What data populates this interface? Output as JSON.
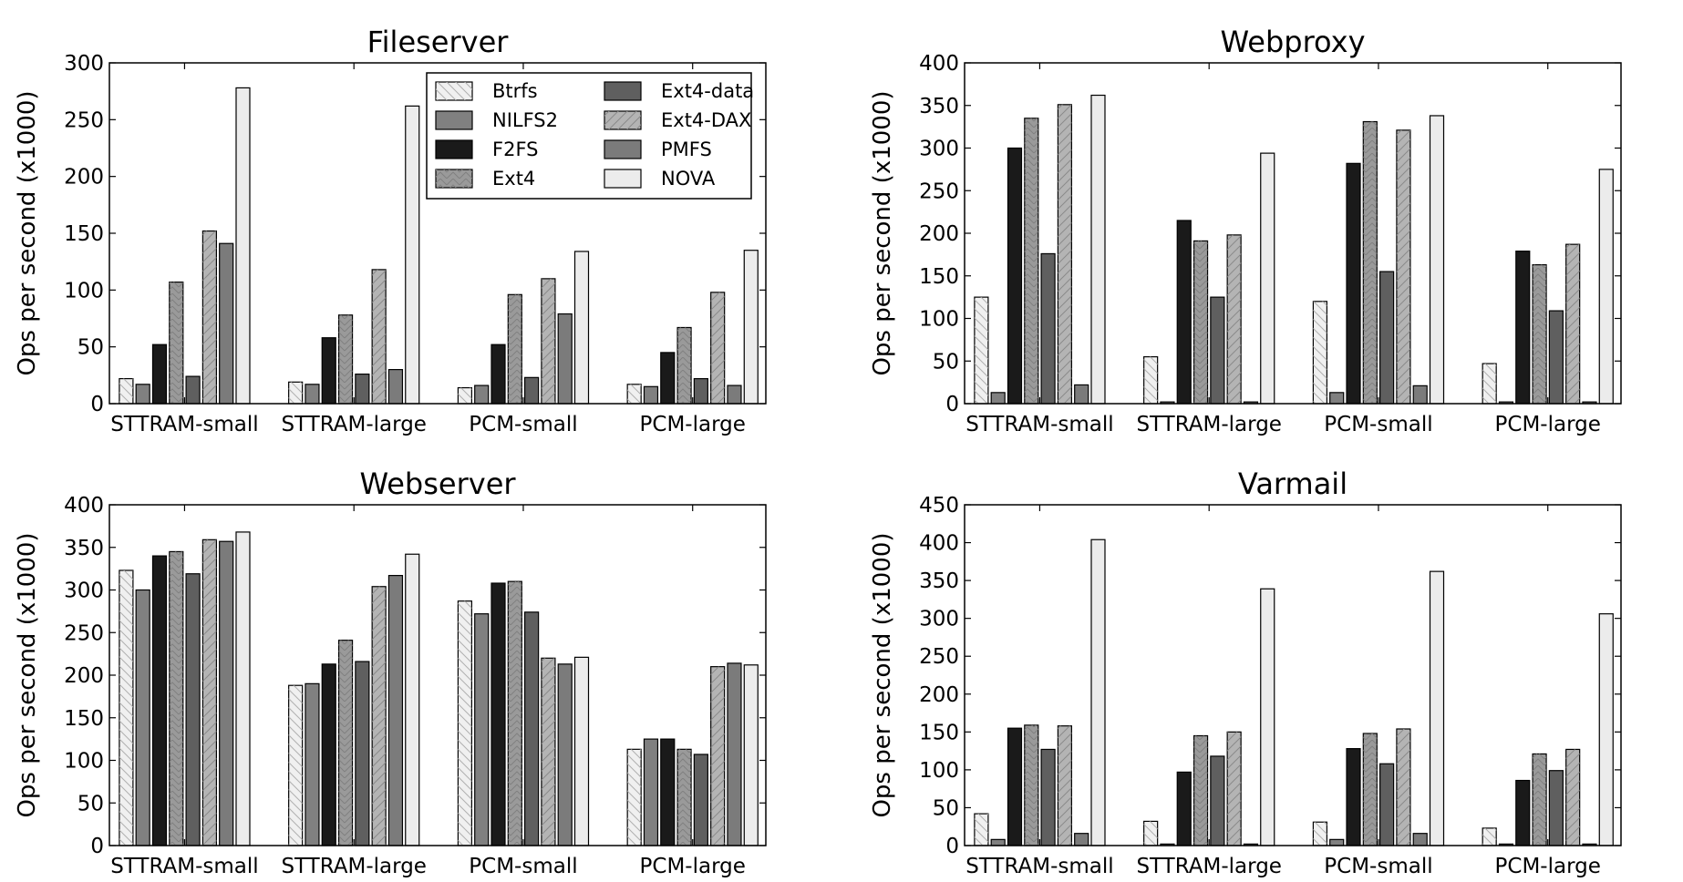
{
  "legend": {
    "items": [
      "Btrfs",
      "NILFS2",
      "F2FS",
      "Ext4",
      "Ext4-data",
      "Ext4-DAX",
      "PMFS",
      "NOVA"
    ],
    "placement": "upper-right of first panel",
    "columns": 2
  },
  "series_styles": [
    {
      "name": "Btrfs",
      "color": "#f0f0f0",
      "hatch": "diagonal-back"
    },
    {
      "name": "NILFS2",
      "color": "#808080",
      "hatch": "none"
    },
    {
      "name": "F2FS",
      "color": "#1a1a1a",
      "hatch": "none"
    },
    {
      "name": "Ext4",
      "color": "#9a9a9a",
      "hatch": "chevron"
    },
    {
      "name": "Ext4-data",
      "color": "#5f5f5f",
      "hatch": "none"
    },
    {
      "name": "Ext4-DAX",
      "color": "#b4b4b4",
      "hatch": "diagonal"
    },
    {
      "name": "PMFS",
      "color": "#7b7b7b",
      "hatch": "none"
    },
    {
      "name": "NOVA",
      "color": "#ececec",
      "hatch": "none"
    }
  ],
  "chart_data": [
    {
      "type": "bar",
      "title": "Fileserver",
      "xlabel": "",
      "ylabel": "Ops per second (x1000)",
      "categories": [
        "STTRAM-small",
        "STTRAM-large",
        "PCM-small",
        "PCM-large"
      ],
      "ylim": [
        0,
        300
      ],
      "yticks": [
        0,
        50,
        100,
        150,
        200,
        250,
        300
      ],
      "grid": false,
      "series": [
        {
          "name": "Btrfs",
          "values": [
            22,
            19,
            14,
            17
          ]
        },
        {
          "name": "NILFS2",
          "values": [
            17,
            17,
            16,
            15
          ]
        },
        {
          "name": "F2FS",
          "values": [
            52,
            58,
            52,
            45
          ]
        },
        {
          "name": "Ext4",
          "values": [
            107,
            78,
            96,
            67
          ]
        },
        {
          "name": "Ext4-data",
          "values": [
            24,
            26,
            23,
            22
          ]
        },
        {
          "name": "Ext4-DAX",
          "values": [
            152,
            118,
            110,
            98
          ]
        },
        {
          "name": "PMFS",
          "values": [
            141,
            30,
            79,
            16
          ]
        },
        {
          "name": "NOVA",
          "values": [
            278,
            262,
            134,
            135
          ]
        }
      ]
    },
    {
      "type": "bar",
      "title": "Webproxy",
      "xlabel": "",
      "ylabel": "Ops per second (x1000)",
      "categories": [
        "STTRAM-small",
        "STTRAM-large",
        "PCM-small",
        "PCM-large"
      ],
      "ylim": [
        0,
        400
      ],
      "yticks": [
        0,
        50,
        100,
        150,
        200,
        250,
        300,
        350,
        400
      ],
      "grid": false,
      "series": [
        {
          "name": "Btrfs",
          "values": [
            125,
            55,
            120,
            47
          ]
        },
        {
          "name": "NILFS2",
          "values": [
            13,
            2,
            13,
            2
          ]
        },
        {
          "name": "F2FS",
          "values": [
            300,
            215,
            282,
            179
          ]
        },
        {
          "name": "Ext4",
          "values": [
            335,
            191,
            331,
            163
          ]
        },
        {
          "name": "Ext4-data",
          "values": [
            176,
            125,
            155,
            109
          ]
        },
        {
          "name": "Ext4-DAX",
          "values": [
            351,
            198,
            321,
            187
          ]
        },
        {
          "name": "PMFS",
          "values": [
            22,
            2,
            21,
            2
          ]
        },
        {
          "name": "NOVA",
          "values": [
            362,
            294,
            338,
            275
          ]
        }
      ]
    },
    {
      "type": "bar",
      "title": "Webserver",
      "xlabel": "",
      "ylabel": "Ops per second (x1000)",
      "categories": [
        "STTRAM-small",
        "STTRAM-large",
        "PCM-small",
        "PCM-large"
      ],
      "ylim": [
        0,
        400
      ],
      "yticks": [
        0,
        50,
        100,
        150,
        200,
        250,
        300,
        350,
        400
      ],
      "grid": false,
      "series": [
        {
          "name": "Btrfs",
          "values": [
            323,
            188,
            287,
            113
          ]
        },
        {
          "name": "NILFS2",
          "values": [
            300,
            190,
            272,
            125
          ]
        },
        {
          "name": "F2FS",
          "values": [
            340,
            213,
            308,
            125
          ]
        },
        {
          "name": "Ext4",
          "values": [
            345,
            241,
            310,
            113
          ]
        },
        {
          "name": "Ext4-data",
          "values": [
            319,
            216,
            274,
            107
          ]
        },
        {
          "name": "Ext4-DAX",
          "values": [
            359,
            304,
            220,
            210
          ]
        },
        {
          "name": "PMFS",
          "values": [
            357,
            317,
            213,
            214
          ]
        },
        {
          "name": "NOVA",
          "values": [
            368,
            342,
            221,
            212
          ]
        }
      ]
    },
    {
      "type": "bar",
      "title": "Varmail",
      "xlabel": "",
      "ylabel": "Ops per second (x1000)",
      "categories": [
        "STTRAM-small",
        "STTRAM-large",
        "PCM-small",
        "PCM-large"
      ],
      "ylim": [
        0,
        450
      ],
      "yticks": [
        0,
        50,
        100,
        150,
        200,
        250,
        300,
        350,
        400,
        450
      ],
      "grid": false,
      "series": [
        {
          "name": "Btrfs",
          "values": [
            42,
            32,
            31,
            23
          ]
        },
        {
          "name": "NILFS2",
          "values": [
            8,
            2,
            8,
            2
          ]
        },
        {
          "name": "F2FS",
          "values": [
            155,
            97,
            128,
            86
          ]
        },
        {
          "name": "Ext4",
          "values": [
            159,
            145,
            148,
            121
          ]
        },
        {
          "name": "Ext4-data",
          "values": [
            127,
            118,
            108,
            99
          ]
        },
        {
          "name": "Ext4-DAX",
          "values": [
            158,
            150,
            154,
            127
          ]
        },
        {
          "name": "PMFS",
          "values": [
            16,
            2,
            16,
            2
          ]
        },
        {
          "name": "NOVA",
          "values": [
            404,
            339,
            362,
            306
          ]
        }
      ]
    }
  ]
}
